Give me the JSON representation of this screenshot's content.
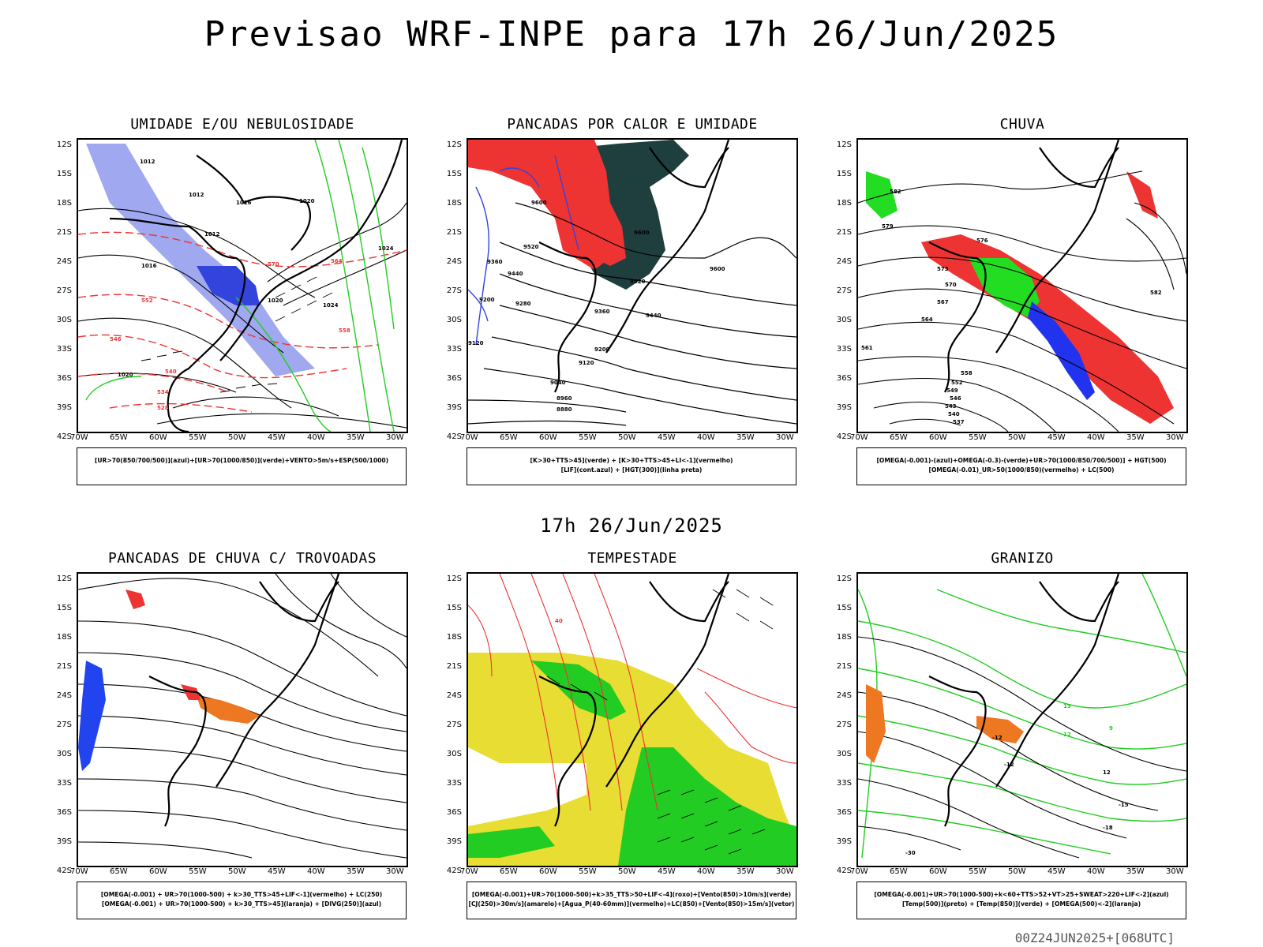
{
  "header": {
    "title": "Previsao WRF-INPE  para 17h 26/Jun/2025",
    "mid_title": "17h 26/Jun/2025",
    "footer": "00Z24JUN2025+[068UTC]"
  },
  "axes": {
    "lat_labels": [
      "12S",
      "15S",
      "18S",
      "21S",
      "24S",
      "27S",
      "30S",
      "33S",
      "36S",
      "39S",
      "42S"
    ],
    "lon_labels": [
      "70W",
      "65W",
      "60W",
      "55W",
      "50W",
      "45W",
      "40W",
      "35W",
      "30W"
    ]
  },
  "panels": [
    {
      "title": "UMIDADE E/OU NEBULOSIDADE",
      "legend": [
        "[UR>70(850/700/500)](azul)+[UR>70(1000/850)](verde)+VENTO>5m/s+ESP(500/1000)"
      ],
      "contour_labels": [
        "1012",
        "1012",
        "1012",
        "1016",
        "1016",
        "1020",
        "1020",
        "1020",
        "1024",
        "1024",
        "570",
        "564",
        "558",
        "552",
        "546",
        "540",
        "534",
        "528"
      ],
      "colors": {
        "fill": "#3344dd",
        "fill_light": "#a0a8f0",
        "green": "#22cc22",
        "red": "#ee3333",
        "isobar": "#000000"
      }
    },
    {
      "title": "PANCADAS POR CALOR E UMIDADE",
      "legend": [
        "[K>30+TTS>45](verde) + [K>30+TTS>45+LI<-1](vermelho)",
        "[LIF](cont.azul) + [HGT(300)](linha preta)"
      ],
      "contour_labels": [
        "9600",
        "9520",
        "9520",
        "9600",
        "9440",
        "9360",
        "9360",
        "9280",
        "9200",
        "9200",
        "9120",
        "9120",
        "9040",
        "8960",
        "8880",
        "9440",
        "9600"
      ],
      "colors": {
        "red": "#ee3333",
        "dark": "#1f3f3f",
        "blue": "#3344dd"
      }
    },
    {
      "title": "CHUVA",
      "legend": [
        "[OMEGA(-0.001)-(azul)+OMEGA(-0.3)-(verde)+UR>70(1000/850/700/500)] + HGT(500)",
        "[OMEGA(-0.01)_UR>50(1000/850)(vermelho) + LC(500)"
      ],
      "contour_labels": [
        "582",
        "579",
        "576",
        "573",
        "570",
        "567",
        "564",
        "561",
        "558",
        "552",
        "549",
        "546",
        "543",
        "540",
        "537",
        "582"
      ],
      "colors": {
        "red": "#ee3333",
        "green": "#22dd22",
        "blue": "#2233ee"
      }
    },
    {
      "title": "PANCADAS DE CHUVA C/ TROVOADAS",
      "legend": [
        "[OMEGA(-0.001) + UR>70(1000-500) + k>30_TTS>45+LIF<-1](vermelho) + LC(250)",
        "[OMEGA(-0.001) + UR>70(1000-500) + k>30_TTS>45](laranja) + [DIVG(250)](azul)"
      ],
      "contour_labels": [],
      "colors": {
        "red": "#ee3333",
        "orange": "#ee7722",
        "blue": "#2244ee"
      }
    },
    {
      "title": "TEMPESTADE",
      "legend": [
        "[OMEGA(-0.001)+UR>70(1000-500)+k>35_TTS>50+LIF<-4](roxo)+[Vento(850)>10m/s](verde)",
        "[CJ(250)>30m/s](amarelo)+[Agua_P(40-60mm)](vermelho)+LC(850)+[Vento(850)>15m/s](vetor)"
      ],
      "contour_labels": [
        "40"
      ],
      "colors": {
        "yellow": "#e8dd33",
        "green": "#22cc22",
        "red": "#ee3333"
      }
    },
    {
      "title": "GRANIZO",
      "legend": [
        "[OMEGA(-0.001)+UR>70(1000-500)+k<60+TTS>52+VT>25+SWEAT>220+LIF<-2](azul)",
        "[Temp(500)](preto) + [Temp(850)](verde) + [OMEGA(500)<-2](laranja)"
      ],
      "contour_labels": [
        "-12",
        "-12",
        "12",
        "-15",
        "-18",
        "-30",
        "15",
        "12",
        "9"
      ],
      "colors": {
        "green": "#22cc22",
        "orange": "#ee7722",
        "black": "#000000"
      }
    }
  ]
}
